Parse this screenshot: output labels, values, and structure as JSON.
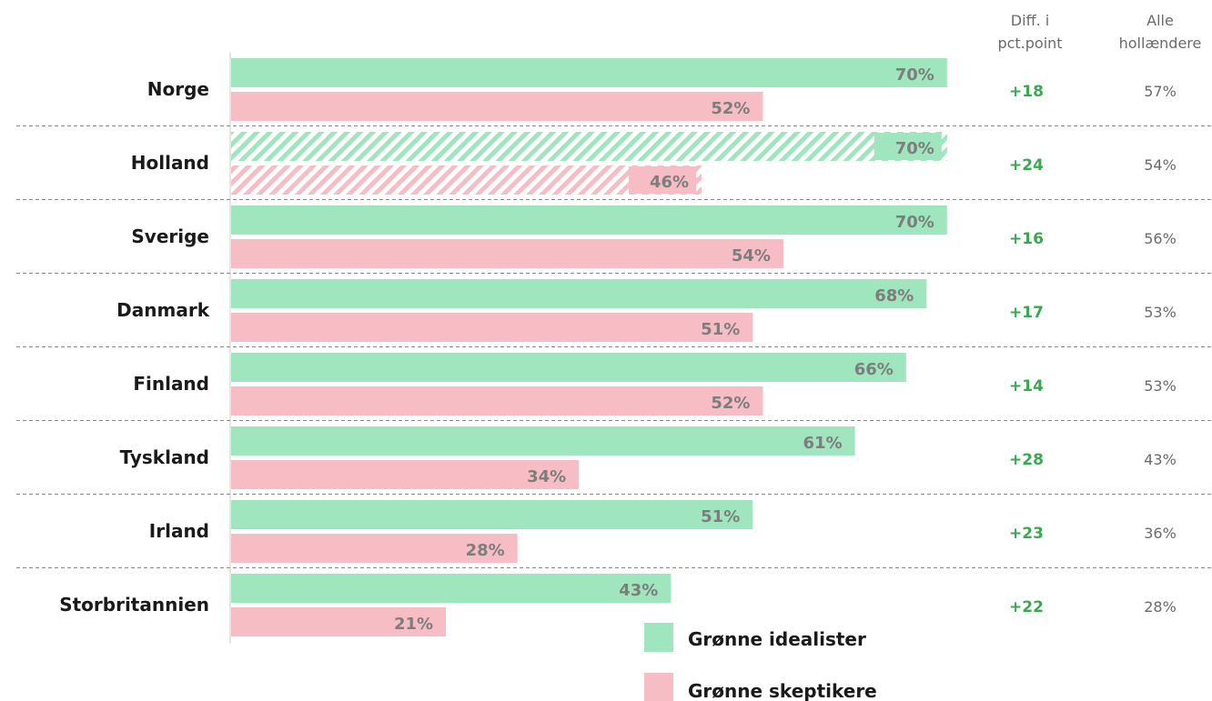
{
  "colors": {
    "green": "#9fe5bd",
    "pink": "#f6bec4",
    "diff_text": "#3aa84e",
    "value_text": "#7d7d7d",
    "divider": "#8a8a8a"
  },
  "headers": {
    "diff_line1": "Diff. i",
    "diff_line2": "pct.point",
    "all_line1": "Alle",
    "all_line2": "hollændere"
  },
  "legend": {
    "green_label": "Grønne idealister",
    "pink_label": "Grønne skeptikere"
  },
  "chart_data": {
    "type": "bar",
    "orientation": "horizontal",
    "unit": "%",
    "xlim": [
      0,
      100
    ],
    "grid": false,
    "legend_position": "bottom",
    "categories": [
      "Norge",
      "Holland",
      "Sverige",
      "Danmark",
      "Finland",
      "Tyskland",
      "Irland",
      "Storbritannien"
    ],
    "series": [
      {
        "name": "Grønne idealister",
        "color": "#9fe5bd",
        "values": [
          70,
          70,
          70,
          68,
          66,
          61,
          51,
          43
        ],
        "labels": [
          "70%",
          "70%",
          "70%",
          "68%",
          "66%",
          "61%",
          "51%",
          "43%"
        ]
      },
      {
        "name": "Grønne skeptikere",
        "color": "#f6bec4",
        "values": [
          52,
          46,
          54,
          51,
          52,
          34,
          28,
          21
        ],
        "labels": [
          "52%",
          "46%",
          "54%",
          "51%",
          "52%",
          "34%",
          "28%",
          "21%"
        ]
      }
    ],
    "hatched_category": "Holland",
    "diff_labels": [
      "+18",
      "+24",
      "+16",
      "+17",
      "+14",
      "+28",
      "+23",
      "+22"
    ],
    "all_dutch_labels": [
      "57%",
      "54%",
      "56%",
      "53%",
      "53%",
      "43%",
      "36%",
      "28%"
    ]
  }
}
